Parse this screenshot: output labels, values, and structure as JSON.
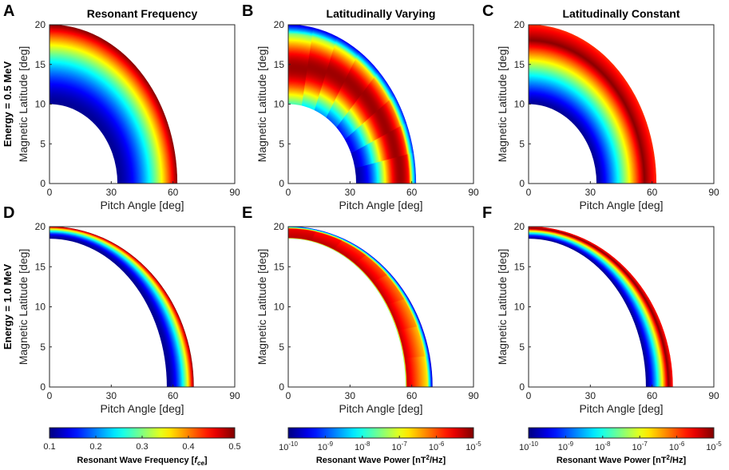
{
  "figure": {
    "row_labels": [
      "Energy = 0.5 MeV",
      "Energy = 1.0 MeV"
    ]
  },
  "chart_data": [
    {
      "type": "heatmap",
      "letter": "A",
      "title": "Resonant Frequency",
      "xlabel": "Pitch Angle [deg]",
      "ylabel": "Magnetic Latitude [deg]",
      "xlim": [
        0,
        90
      ],
      "ylim": [
        0,
        20
      ],
      "xticks": [
        "0",
        "30",
        "60",
        "90"
      ],
      "yticks": [
        "0",
        "5",
        "10",
        "15",
        "20"
      ],
      "energy_MeV": 0.5,
      "pitch_angle_inner_deg": 33,
      "pitch_angle_outer_deg": 62,
      "latitude_inner_deg": 10,
      "latitude_outer_deg": 20,
      "field": "resonant_frequency",
      "colormap": "jet"
    },
    {
      "type": "heatmap",
      "letter": "B",
      "title": "Latitudinally Varying",
      "xlabel": "Pitch Angle [deg]",
      "ylabel": "Magnetic Latitude [deg]",
      "xlim": [
        0,
        90
      ],
      "ylim": [
        0,
        20
      ],
      "xticks": [
        "0",
        "30",
        "60",
        "90"
      ],
      "yticks": [
        "0",
        "5",
        "10",
        "15",
        "20"
      ],
      "energy_MeV": 0.5,
      "pitch_angle_inner_deg": 33,
      "pitch_angle_outer_deg": 62,
      "latitude_inner_deg": 10,
      "latitude_outer_deg": 20,
      "field": "wave_power_latitudinally_varying",
      "colormap": "jet"
    },
    {
      "type": "heatmap",
      "letter": "C",
      "title": "Latitudinally Constant",
      "xlabel": "Pitch Angle [deg]",
      "ylabel": "Magnetic Latitude [deg]",
      "xlim": [
        0,
        90
      ],
      "ylim": [
        0,
        20
      ],
      "xticks": [
        "0",
        "30",
        "60",
        "90"
      ],
      "yticks": [
        "0",
        "5",
        "10",
        "15",
        "20"
      ],
      "energy_MeV": 0.5,
      "pitch_angle_inner_deg": 33,
      "pitch_angle_outer_deg": 62,
      "latitude_inner_deg": 10,
      "latitude_outer_deg": 20,
      "field": "wave_power_latitudinally_constant",
      "colormap": "jet"
    },
    {
      "type": "heatmap",
      "letter": "D",
      "title": "",
      "xlabel": "Pitch Angle [deg]",
      "ylabel": "Magnetic Latitude [deg]",
      "xlim": [
        0,
        90
      ],
      "ylim": [
        0,
        20
      ],
      "xticks": [
        "0",
        "30",
        "60",
        "90"
      ],
      "yticks": [
        "0",
        "5",
        "10",
        "15",
        "20"
      ],
      "energy_MeV": 1.0,
      "pitch_angle_inner_deg": 57,
      "pitch_angle_outer_deg": 70,
      "latitude_inner_deg": 18.5,
      "latitude_outer_deg": 20,
      "field": "resonant_frequency",
      "colormap": "jet"
    },
    {
      "type": "heatmap",
      "letter": "E",
      "title": "",
      "xlabel": "Pitch Angle [deg]",
      "ylabel": "Magnetic Latitude [deg]",
      "xlim": [
        0,
        90
      ],
      "ylim": [
        0,
        20
      ],
      "xticks": [
        "0",
        "30",
        "60",
        "90"
      ],
      "yticks": [
        "0",
        "5",
        "10",
        "15",
        "20"
      ],
      "energy_MeV": 1.0,
      "pitch_angle_inner_deg": 57,
      "pitch_angle_outer_deg": 70,
      "latitude_inner_deg": 18.5,
      "latitude_outer_deg": 20,
      "field": "wave_power_latitudinally_varying",
      "colormap": "jet"
    },
    {
      "type": "heatmap",
      "letter": "F",
      "title": "",
      "xlabel": "Pitch Angle [deg]",
      "ylabel": "Magnetic Latitude [deg]",
      "xlim": [
        0,
        90
      ],
      "ylim": [
        0,
        20
      ],
      "xticks": [
        "0",
        "30",
        "60",
        "90"
      ],
      "yticks": [
        "0",
        "5",
        "10",
        "15",
        "20"
      ],
      "energy_MeV": 1.0,
      "pitch_angle_inner_deg": 57,
      "pitch_angle_outer_deg": 70,
      "latitude_inner_deg": 18.5,
      "latitude_outer_deg": 20,
      "field": "wave_power_latitudinally_constant",
      "colormap": "jet"
    }
  ],
  "colorbars": [
    {
      "label": "Resonant Wave Frequency [",
      "label_italic": "f",
      "label_sub": "ce",
      "label_end": "]",
      "range": [
        0.1,
        0.5
      ],
      "ticks": [
        "0.1",
        "0.2",
        "0.3",
        "0.4",
        "0.5"
      ],
      "scale": "linear"
    },
    {
      "label": "Resonant Wave Power [nT",
      "label_sup": "2",
      "label_end": "/Hz]",
      "range": [
        -10,
        -5
      ],
      "tick_base": "10",
      "tick_exponents": [
        "-10",
        "-9",
        "-8",
        "-7",
        "-6",
        "-5"
      ],
      "scale": "log"
    },
    {
      "label": "Resonant Wave Power [nT",
      "label_sup": "2",
      "label_end": "/Hz]",
      "range": [
        -10,
        -5
      ],
      "tick_base": "10",
      "tick_exponents": [
        "-10",
        "-9",
        "-8",
        "-7",
        "-6",
        "-5"
      ],
      "scale": "log"
    }
  ]
}
